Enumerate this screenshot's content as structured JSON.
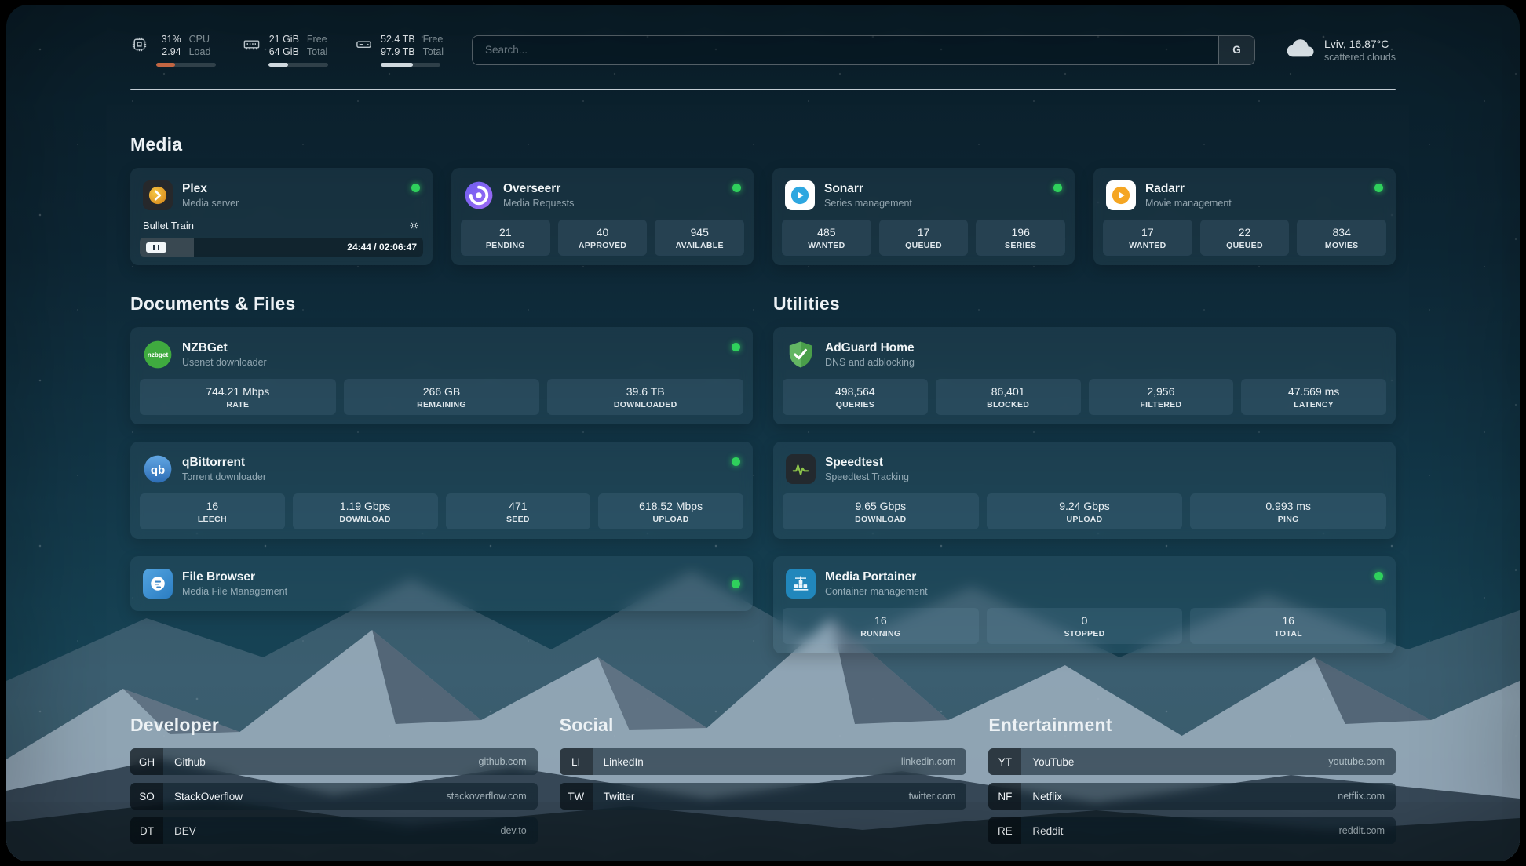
{
  "status_color": "#2fd05c",
  "topbar": {
    "cpu": {
      "icon": "cpu-icon",
      "values": [
        "31%",
        "2.94"
      ],
      "labels": [
        "CPU",
        "Load"
      ],
      "percent": 31
    },
    "memory": {
      "icon": "memory-icon",
      "values": [
        "21 GiB",
        "64 GiB"
      ],
      "labels": [
        "Free",
        "Total"
      ],
      "percent": 33
    },
    "disk": {
      "icon": "disk-icon",
      "values": [
        "52.4 TB",
        "97.9 TB"
      ],
      "labels": [
        "Free",
        "Total"
      ],
      "percent": 54
    },
    "search": {
      "placeholder": "Search...",
      "button_label": "G"
    },
    "weather": {
      "icon": "cloud-icon",
      "title": "Lviv, 16.87°C",
      "subtitle": "scattered clouds"
    }
  },
  "media": {
    "title": "Media",
    "plex": {
      "icon": "plex-icon",
      "name": "Plex",
      "subtitle": "Media server",
      "now_playing": "Bullet Train",
      "elapsed_total": "24:44 / 02:06:47",
      "progress_percent": 19
    },
    "cards": [
      {
        "icon": "overseerr-icon",
        "name": "Overseerr",
        "subtitle": "Media Requests",
        "stats": [
          {
            "value": "21",
            "label": "PENDING"
          },
          {
            "value": "40",
            "label": "APPROVED"
          },
          {
            "value": "945",
            "label": "AVAILABLE"
          }
        ]
      },
      {
        "icon": "sonarr-icon",
        "name": "Sonarr",
        "subtitle": "Series management",
        "stats": [
          {
            "value": "485",
            "label": "WANTED"
          },
          {
            "value": "17",
            "label": "QUEUED"
          },
          {
            "value": "196",
            "label": "SERIES"
          }
        ]
      },
      {
        "icon": "radarr-icon",
        "name": "Radarr",
        "subtitle": "Movie management",
        "stats": [
          {
            "value": "17",
            "label": "WANTED"
          },
          {
            "value": "22",
            "label": "QUEUED"
          },
          {
            "value": "834",
            "label": "MOVIES"
          }
        ]
      }
    ]
  },
  "documents": {
    "title": "Documents & Files",
    "cards": [
      {
        "icon": "nzbget-icon",
        "name": "NZBGet",
        "subtitle": "Usenet downloader",
        "stats": [
          {
            "value": "744.21 Mbps",
            "label": "RATE"
          },
          {
            "value": "266 GB",
            "label": "REMAINING"
          },
          {
            "value": "39.6 TB",
            "label": "DOWNLOADED"
          }
        ]
      },
      {
        "icon": "qbittorrent-icon",
        "name": "qBittorrent",
        "subtitle": "Torrent downloader",
        "stats": [
          {
            "value": "16",
            "label": "LEECH"
          },
          {
            "value": "1.19 Gbps",
            "label": "DOWNLOAD"
          },
          {
            "value": "471",
            "label": "SEED"
          },
          {
            "value": "618.52 Mbps",
            "label": "UPLOAD"
          }
        ]
      },
      {
        "icon": "filebrowser-icon",
        "name": "File Browser",
        "subtitle": "Media File Management",
        "stats": []
      }
    ]
  },
  "utilities": {
    "title": "Utilities",
    "cards": [
      {
        "icon": "adguard-icon",
        "name": "AdGuard Home",
        "subtitle": "DNS and adblocking",
        "stats": [
          {
            "value": "498,564",
            "label": "QUERIES"
          },
          {
            "value": "86,401",
            "label": "BLOCKED"
          },
          {
            "value": "2,956",
            "label": "FILTERED"
          },
          {
            "value": "47.569 ms",
            "label": "LATENCY"
          }
        ]
      },
      {
        "icon": "speedtest-icon",
        "name": "Speedtest",
        "subtitle": "Speedtest Tracking",
        "stats": [
          {
            "value": "9.65 Gbps",
            "label": "DOWNLOAD"
          },
          {
            "value": "9.24 Gbps",
            "label": "UPLOAD"
          },
          {
            "value": "0.993 ms",
            "label": "PING"
          }
        ]
      },
      {
        "icon": "portainer-icon",
        "name": "Media Portainer",
        "subtitle": "Container management",
        "stats": [
          {
            "value": "16",
            "label": "RUNNING"
          },
          {
            "value": "0",
            "label": "STOPPED"
          },
          {
            "value": "16",
            "label": "TOTAL"
          }
        ]
      }
    ]
  },
  "bookmarks": {
    "groups": [
      {
        "title": "Developer",
        "items": [
          {
            "abbr": "GH",
            "name": "Github",
            "url": "github.com"
          },
          {
            "abbr": "SO",
            "name": "StackOverflow",
            "url": "stackoverflow.com"
          },
          {
            "abbr": "DT",
            "name": "DEV",
            "url": "dev.to"
          }
        ]
      },
      {
        "title": "Social",
        "items": [
          {
            "abbr": "LI",
            "name": "LinkedIn",
            "url": "linkedin.com"
          },
          {
            "abbr": "TW",
            "name": "Twitter",
            "url": "twitter.com"
          }
        ]
      },
      {
        "title": "Entertainment",
        "items": [
          {
            "abbr": "YT",
            "name": "YouTube",
            "url": "youtube.com"
          },
          {
            "abbr": "NF",
            "name": "Netflix",
            "url": "netflix.com"
          },
          {
            "abbr": "RE",
            "name": "Reddit",
            "url": "reddit.com"
          }
        ]
      }
    ]
  }
}
